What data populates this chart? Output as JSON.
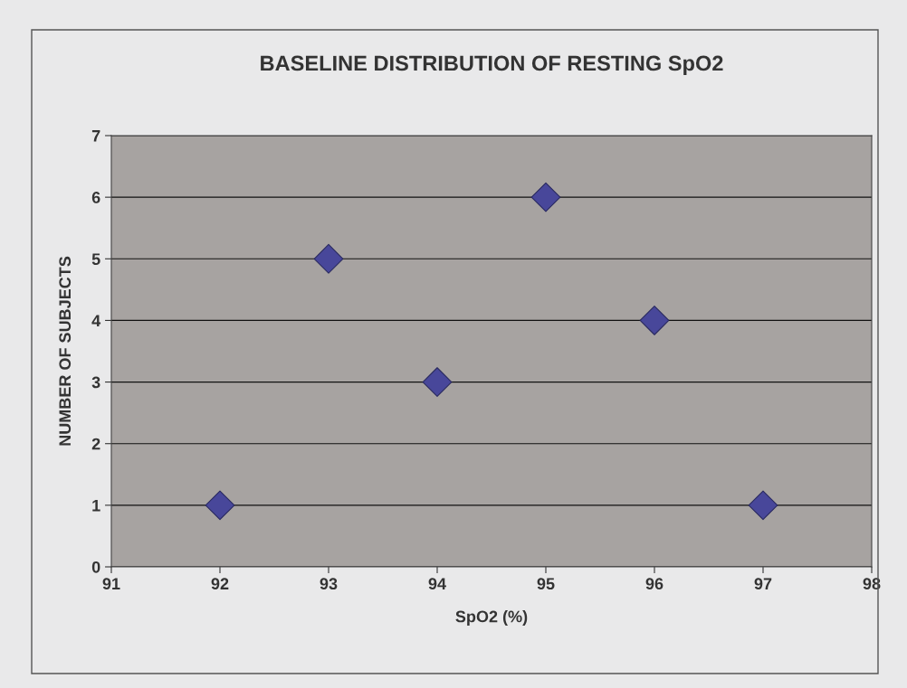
{
  "chart_data": {
    "type": "scatter",
    "title": "BASELINE DISTRIBUTION OF RESTING SpO2",
    "xlabel": "SpO2 (%)",
    "ylabel": "NUMBER OF SUBJECTS",
    "x": [
      92,
      93,
      94,
      95,
      96,
      97
    ],
    "series": [
      {
        "color": "#48479a",
        "values": [
          1,
          5,
          3,
          6,
          4,
          1
        ]
      }
    ],
    "xlim": [
      91,
      98
    ],
    "xticks": [
      91,
      92,
      93,
      94,
      95,
      96,
      97,
      98
    ],
    "ylim": [
      0,
      7
    ],
    "yticks": [
      0,
      1,
      2,
      3,
      4,
      5,
      6,
      7
    ],
    "grid": "y",
    "marker": "diamond",
    "legend": false
  }
}
